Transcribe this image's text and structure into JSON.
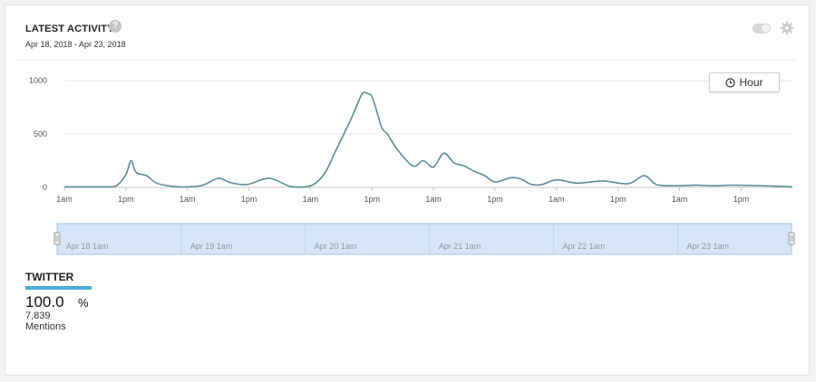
{
  "header": {
    "title": "LATEST ACTIVITY",
    "help_icon": "question-circle-icon",
    "help_glyph": "?",
    "date_range": "Apr 18, 2018 - Apr 23, 2018",
    "toggle_icon": "toggle-switch-icon",
    "settings_icon": "gear-icon"
  },
  "hour_button": {
    "label": "Hour",
    "icon": "clock-icon"
  },
  "colors": {
    "line": "#5f8a9c",
    "grid": "#e9e9e9",
    "navigator_fill": "#d6e6f8",
    "navigator_border": "#a7c2e3",
    "twitter_accent": "#4aaed4"
  },
  "chart_data": {
    "type": "line",
    "title": "",
    "xlabel": "",
    "ylabel": "",
    "ylim": [
      0,
      1000
    ],
    "y_ticks": [
      0,
      500,
      1000
    ],
    "x_ticks": [
      "1am",
      "1pm",
      "1am",
      "1pm",
      "1am",
      "1pm",
      "1am",
      "1pm",
      "1am",
      "1pm",
      "1am",
      "1pm"
    ],
    "grid": true,
    "series": [
      {
        "x": [
          "Apr 18 1am",
          "Apr 18 7am",
          "Apr 18 9am",
          "Apr 18 11am",
          "Apr 18 1pm",
          "Apr 18 2pm",
          "Apr 18 3pm",
          "Apr 18 5pm",
          "Apr 18 7pm",
          "Apr 18 10pm",
          "Apr 19 1am",
          "Apr 19 4am",
          "Apr 19 7am",
          "Apr 19 9am",
          "Apr 19 11am",
          "Apr 19 1pm",
          "Apr 19 5pm",
          "Apr 19 9pm",
          "Apr 20 12am",
          "Apr 20 2am",
          "Apr 20 4am",
          "Apr 20 6am",
          "Apr 20 9am",
          "Apr 20 11am",
          "Apr 20 12pm",
          "Apr 20 1pm",
          "Apr 20 2pm",
          "Apr 20 3pm",
          "Apr 20 4pm",
          "Apr 20 6pm",
          "Apr 20 9pm",
          "Apr 20 11pm",
          "Apr 21 1am",
          "Apr 21 3am",
          "Apr 21 5am",
          "Apr 21 7am",
          "Apr 21 9am",
          "Apr 21 11am",
          "Apr 21 1pm",
          "Apr 21 4pm",
          "Apr 21 6pm",
          "Apr 21 8pm",
          "Apr 21 10pm",
          "Apr 22 1am",
          "Apr 22 5am",
          "Apr 22 10am",
          "Apr 22 3pm",
          "Apr 22 6pm",
          "Apr 22 8pm",
          "Apr 22 9pm",
          "Apr 23 12am",
          "Apr 23 4am",
          "Apr 23 8am",
          "Apr 23 11am",
          "Apr 23 5pm",
          "Apr 23 11pm"
        ],
        "values": [
          5,
          5,
          5,
          10,
          120,
          250,
          140,
          110,
          40,
          10,
          5,
          20,
          85,
          50,
          30,
          30,
          85,
          10,
          5,
          40,
          150,
          350,
          650,
          870,
          880,
          850,
          700,
          550,
          500,
          350,
          200,
          250,
          190,
          320,
          230,
          200,
          150,
          110,
          50,
          90,
          80,
          30,
          25,
          70,
          40,
          60,
          35,
          110,
          40,
          20,
          15,
          20,
          15,
          20,
          15,
          5
        ]
      }
    ],
    "navigator": {
      "labels": [
        "Apr 18 1am",
        "Apr 19 1am",
        "Apr 20 1am",
        "Apr 21 1am",
        "Apr 22 1am",
        "Apr 23 1am"
      ]
    }
  },
  "twitter": {
    "label": "TWITTER",
    "share_value": "100.0",
    "share_unit": "%",
    "mentions_count": "7,839",
    "mentions_label": "Mentions"
  }
}
